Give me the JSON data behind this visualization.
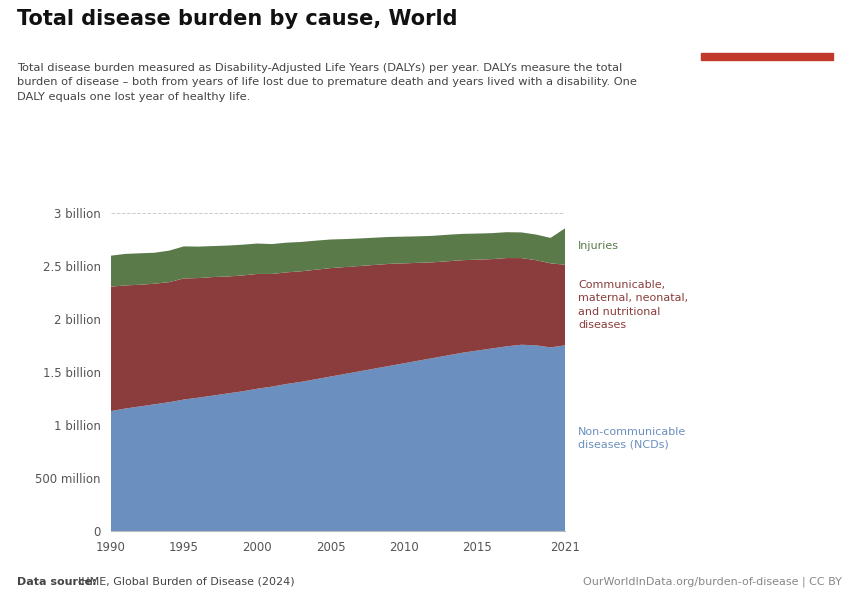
{
  "title": "Total disease burden by cause, World",
  "subtitle": "Total disease burden measured as Disability-Adjusted Life Years (DALYs) per year. DALYs measure the total\nburden of disease – both from years of life lost due to premature death and years lived with a disability. One\nDALY equals one lost year of healthy life.",
  "datasource_bold": "Data source: ",
  "datasource_rest": "IHME, Global Burden of Disease (2024)",
  "url": "OurWorldInData.org/burden-of-disease | CC BY",
  "years": [
    1990,
    1991,
    1992,
    1993,
    1994,
    1995,
    1996,
    1997,
    1998,
    1999,
    2000,
    2001,
    2002,
    2003,
    2004,
    2005,
    2006,
    2007,
    2008,
    2009,
    2010,
    2011,
    2012,
    2013,
    2014,
    2015,
    2016,
    2017,
    2018,
    2019,
    2020,
    2021
  ],
  "ncd": [
    1130,
    1155,
    1175,
    1195,
    1215,
    1240,
    1258,
    1278,
    1298,
    1318,
    1342,
    1362,
    1387,
    1407,
    1432,
    1457,
    1482,
    1507,
    1532,
    1557,
    1582,
    1607,
    1632,
    1657,
    1682,
    1702,
    1722,
    1742,
    1757,
    1752,
    1732,
    1752
  ],
  "communicable": [
    1175,
    1162,
    1148,
    1138,
    1133,
    1143,
    1128,
    1118,
    1103,
    1093,
    1083,
    1063,
    1053,
    1043,
    1033,
    1023,
    1008,
    993,
    978,
    963,
    943,
    923,
    903,
    888,
    873,
    858,
    843,
    833,
    818,
    803,
    793,
    760
  ],
  "injuries": [
    292,
    297,
    297,
    292,
    297,
    302,
    297,
    292,
    292,
    290,
    287,
    282,
    280,
    277,
    274,
    270,
    264,
    260,
    257,
    254,
    252,
    250,
    250,
    250,
    248,
    246,
    245,
    244,
    242,
    242,
    240,
    345
  ],
  "ncd_color": "#6b8fbe",
  "communicable_color": "#8b3d3d",
  "injuries_color": "#5a7a4a",
  "background_color": "#ffffff",
  "owid_box_color": "#1a3a5c",
  "owid_box_red": "#c0392b",
  "yticks": [
    0,
    500,
    1000,
    1500,
    2000,
    2500,
    3000
  ],
  "ytick_labels": [
    "0",
    "500 million",
    "1 billion",
    "1.5 billion",
    "2 billion",
    "2.5 billion",
    "3 billion"
  ]
}
